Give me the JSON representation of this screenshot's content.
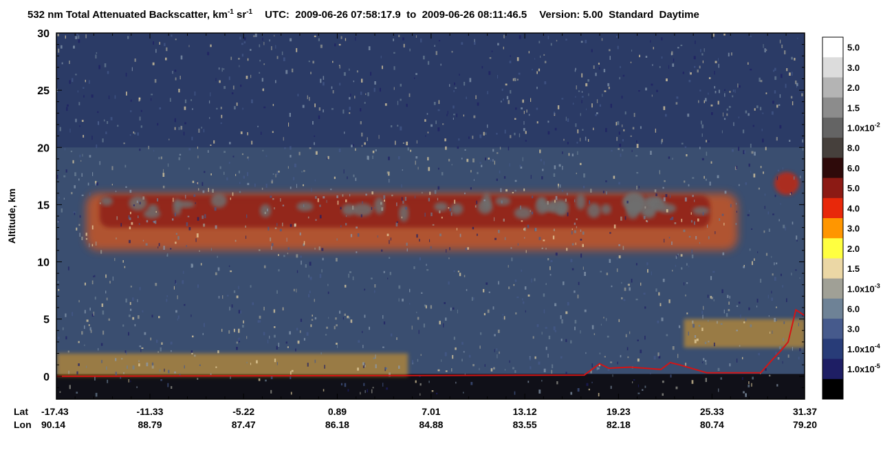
{
  "title": {
    "quantity_prefix": "532 nm Total Attenuated Backscatter, km",
    "unit_exp1": "-1",
    "unit_sr": " sr",
    "unit_exp2": "-1",
    "utc_label": "UTC:",
    "time_start": "2009-06-26 07:58:17.9",
    "time_to": "to",
    "time_end": "2009-06-26 08:11:46.5",
    "version_label": "Version: 5.00",
    "product": "Standard",
    "mode": "Daytime"
  },
  "chart_data": {
    "type": "heatmap",
    "ylabel": "Altitude, km",
    "ylim": [
      -2,
      30
    ],
    "y_ticks": [
      "0",
      "5",
      "10",
      "15",
      "20",
      "25",
      "30"
    ],
    "x_row_labels": [
      "Lat",
      "Lon"
    ],
    "x_ticks": [
      {
        "lat": "-17.43",
        "lon": "90.14"
      },
      {
        "lat": "-11.33",
        "lon": "88.79"
      },
      {
        "lat": "-5.22",
        "lon": "87.47"
      },
      {
        "lat": "0.89",
        "lon": "86.18"
      },
      {
        "lat": "7.01",
        "lon": "84.88"
      },
      {
        "lat": "13.12",
        "lon": "83.55"
      },
      {
        "lat": "19.23",
        "lon": "82.18"
      },
      {
        "lat": "25.33",
        "lon": "80.74"
      },
      {
        "lat": "31.37",
        "lon": "79.20"
      }
    ],
    "lat_range": [
      -17.43,
      31.37
    ],
    "colorbar": [
      {
        "label": "5.0",
        "color": "#ffffff"
      },
      {
        "label": "3.0",
        "color": "#dcdcdc"
      },
      {
        "label": "2.0",
        "color": "#b4b4b4"
      },
      {
        "label": "1.5",
        "color": "#8c8c8c"
      },
      {
        "label": "1.0x10",
        "exp": "-2",
        "color": "#646464"
      },
      {
        "label": "8.0",
        "color": "#46403c"
      },
      {
        "label": "6.0",
        "color": "#2e0a0a"
      },
      {
        "label": "5.0",
        "color": "#8c1a14"
      },
      {
        "label": "4.0",
        "color": "#e8280a"
      },
      {
        "label": "3.0",
        "color": "#ff9600"
      },
      {
        "label": "2.0",
        "color": "#ffff40"
      },
      {
        "label": "1.5",
        "color": "#ebd7a5"
      },
      {
        "label": "1.0x10",
        "exp": "-3",
        "color": "#a0a096"
      },
      {
        "label": "6.0",
        "color": "#6e8296"
      },
      {
        "label": "3.0",
        "color": "#465a8c"
      },
      {
        "label": "1.0x10",
        "exp": "-4",
        "color": "#283c78"
      },
      {
        "label": "1.0x10",
        "exp": "-5",
        "color": "#1e1e64"
      },
      {
        "label": "",
        "color": "#000000"
      }
    ],
    "cloud_features": [
      {
        "name": "upper-cloud-layer",
        "lat": [
          -15.5,
          27.0
        ],
        "alt": [
          11.0,
          16.0
        ]
      },
      {
        "name": "isolated-cloud",
        "lat": [
          29.4,
          31.0
        ],
        "alt": [
          16.2,
          17.5
        ]
      },
      {
        "name": "boundary-layer-aerosol",
        "lat": [
          -17.4,
          5.5
        ],
        "alt": [
          0,
          2.0
        ]
      },
      {
        "name": "lofted-aerosol",
        "lat": [
          23.5,
          31.4
        ],
        "alt": [
          2.5,
          5.0
        ]
      }
    ],
    "surface_line": {
      "color": "#d41414",
      "lat": [
        -17.43,
        17.0,
        18.0,
        18.6,
        20.0,
        22.0,
        22.6,
        23.2,
        25.0,
        28.5,
        29.3,
        29.8,
        30.3,
        30.8,
        31.37
      ],
      "alt": [
        0,
        0.1,
        1.1,
        0.7,
        0.8,
        0.6,
        1.2,
        1.0,
        0.3,
        0.3,
        1.5,
        2.2,
        3.0,
        5.8,
        5.3
      ]
    }
  }
}
